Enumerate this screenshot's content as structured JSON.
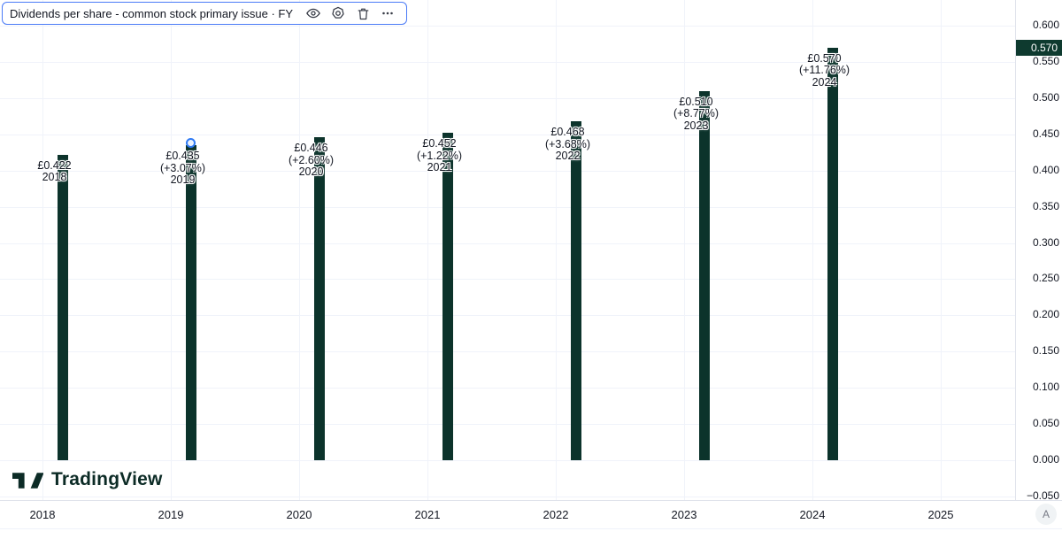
{
  "legend": {
    "title": "Dividends per share - common stock primary issue · FY",
    "icons": [
      "visibility-icon",
      "settings-icon",
      "delete-icon",
      "more-icon"
    ]
  },
  "chart_data": {
    "type": "bar",
    "title": "Dividends per share - common stock primary issue · FY",
    "currency": "GBP",
    "categories": [
      "2018",
      "2019",
      "2020",
      "2021",
      "2022",
      "2023",
      "2024"
    ],
    "values": [
      0.422,
      0.435,
      0.446,
      0.452,
      0.468,
      0.51,
      0.57
    ],
    "value_labels": [
      "£0.422",
      "£0.435",
      "£0.446",
      "£0.452",
      "£0.468",
      "£0.510",
      "£0.570"
    ],
    "pct_change_labels": [
      null,
      "(+3.07%)",
      "(+2.60%)",
      "(+1.22%)",
      "(+3.68%)",
      "(+8.77%)",
      "(+11.76%)"
    ],
    "x_axis_ticks": [
      "2018",
      "2019",
      "2020",
      "2021",
      "2022",
      "2023",
      "2024",
      "2025"
    ],
    "y_axis_ticks": [
      0.6,
      0.55,
      0.5,
      0.45,
      0.4,
      0.35,
      0.3,
      0.25,
      0.2,
      0.15,
      0.1,
      0.05,
      0.0,
      -0.05
    ],
    "ylim": [
      -0.075,
      0.635
    ],
    "grid": true,
    "legend_position": "top-left",
    "selected_year": "2019",
    "last_value_badge": {
      "label": "0.570",
      "value": 0.57
    }
  },
  "price_axis": {
    "auto_button_label": "A"
  },
  "watermark": {
    "brand": "TradingView"
  },
  "colors": {
    "bar": "#0c332b",
    "badge_bg": "#0e3a2f",
    "grid": "#f0f3fa",
    "axis_text": "#131722",
    "legend_border": "#4a7bf7",
    "icon": "#363a45",
    "watermark": "#0c2b26",
    "handle_border": "#2f7af5"
  }
}
